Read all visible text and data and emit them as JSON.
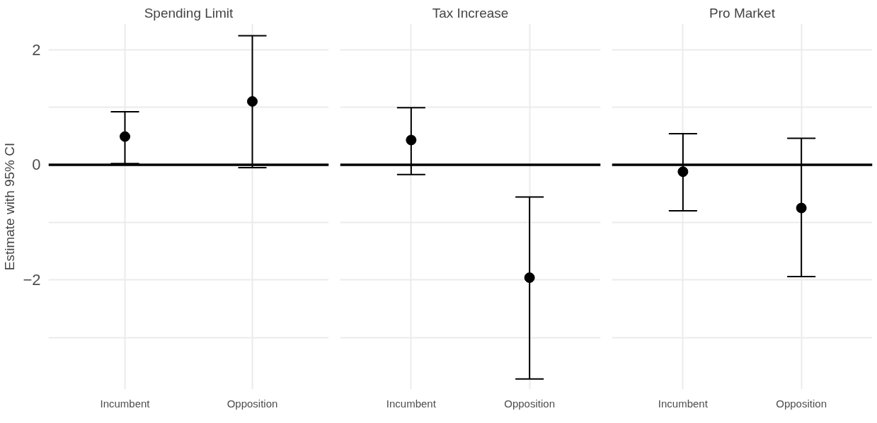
{
  "chart_data": [
    {
      "type": "scatter",
      "title": "Spending Limit",
      "ylabel": "Estimate with 95% CI",
      "categories": [
        "Incumbent",
        "Opposition"
      ],
      "values": [
        0.49,
        1.1
      ],
      "errors": [
        [
          0.02,
          0.92
        ],
        [
          -0.05,
          2.24
        ]
      ],
      "color": "#000000",
      "marker": "circle",
      "ylim": [
        -3.9,
        2.45
      ],
      "yticks": [
        {
          "value": -3,
          "label": null
        },
        {
          "value": -2,
          "label": "−2"
        },
        {
          "value": -1,
          "label": null
        },
        0,
        {
          "value": 1,
          "label": null
        },
        2
      ],
      "grid": true,
      "ref_lines": [
        {
          "axis": "y",
          "value": 0,
          "color": "#000000"
        }
      ]
    },
    {
      "type": "scatter",
      "title": "Tax Increase",
      "categories": [
        "Incumbent",
        "Opposition"
      ],
      "values": [
        0.43,
        -1.96
      ],
      "errors": [
        [
          -0.17,
          0.99
        ],
        [
          -3.72,
          -0.56
        ]
      ],
      "color": "#000000",
      "marker": "circle",
      "ylim": [
        -3.9,
        2.45
      ],
      "yticks": [
        -3,
        -2,
        -1,
        0,
        1,
        2
      ],
      "grid": true,
      "tick_labels": "x",
      "ref_lines": [
        {
          "axis": "y",
          "value": 0,
          "color": "#000000"
        }
      ]
    },
    {
      "type": "scatter",
      "title": "Pro Market",
      "categories": [
        "Incumbent",
        "Opposition"
      ],
      "values": [
        -0.12,
        -0.75
      ],
      "errors": [
        [
          -0.8,
          0.54
        ],
        [
          -1.94,
          0.46
        ]
      ],
      "color": "#000000",
      "marker": "circle",
      "ylim": [
        -3.9,
        2.45
      ],
      "yticks": [
        -3,
        -2,
        -1,
        0,
        1,
        2
      ],
      "grid": true,
      "tick_labels": "x",
      "ref_lines": [
        {
          "axis": "y",
          "value": 0,
          "color": "#000000"
        }
      ]
    }
  ]
}
